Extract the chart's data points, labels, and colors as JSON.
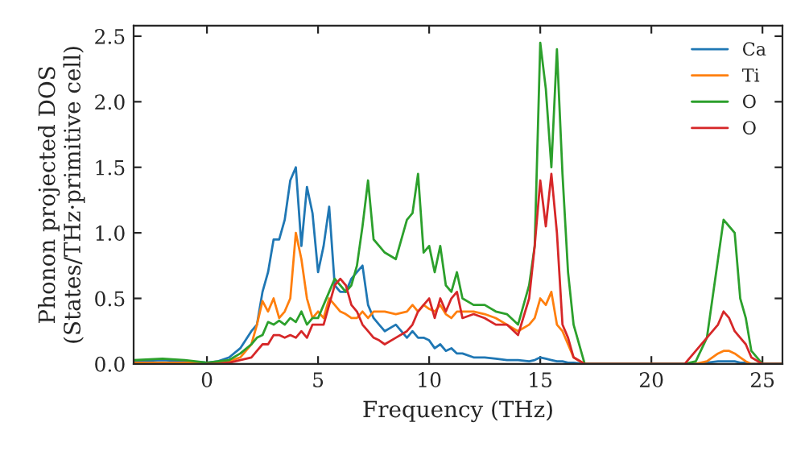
{
  "chart_data": {
    "type": "line",
    "xlabel": "Frequency (THz)",
    "ylabel": "Phonon projected DOS\n(States/THz·primitive cell)",
    "x": [
      -3.3,
      -2,
      -1,
      0,
      0.5,
      1,
      1.5,
      2,
      2.25,
      2.5,
      2.75,
      3,
      3.25,
      3.5,
      3.75,
      4,
      4.25,
      4.5,
      4.75,
      5,
      5.25,
      5.5,
      5.75,
      6,
      6.25,
      6.5,
      6.75,
      7,
      7.25,
      7.5,
      7.75,
      8,
      8.5,
      9,
      9.25,
      9.5,
      9.75,
      10,
      10.25,
      10.5,
      10.75,
      11,
      11.25,
      11.5,
      12,
      12.5,
      13,
      13.5,
      14,
      14.5,
      14.75,
      15,
      15.25,
      15.5,
      15.75,
      16,
      16.25,
      16.5,
      17,
      18,
      20,
      21.5,
      22,
      22.5,
      23,
      23.25,
      23.5,
      23.75,
      24,
      24.25,
      24.5,
      25,
      25.9
    ],
    "series": [
      {
        "name": "Ca",
        "color": "#1f77b4",
        "values": [
          0.02,
          0.03,
          0.02,
          0.01,
          0.02,
          0.05,
          0.12,
          0.25,
          0.3,
          0.55,
          0.7,
          0.95,
          0.95,
          1.1,
          1.4,
          1.5,
          0.9,
          1.35,
          1.15,
          0.7,
          0.9,
          1.2,
          0.6,
          0.55,
          0.55,
          0.65,
          0.7,
          0.75,
          0.45,
          0.35,
          0.3,
          0.25,
          0.3,
          0.2,
          0.25,
          0.2,
          0.2,
          0.18,
          0.12,
          0.15,
          0.1,
          0.12,
          0.08,
          0.08,
          0.05,
          0.05,
          0.04,
          0.03,
          0.03,
          0.02,
          0.03,
          0.05,
          0.04,
          0.03,
          0.02,
          0.02,
          0.01,
          0.01,
          0,
          0,
          0,
          0,
          0,
          0.01,
          0.02,
          0.02,
          0.02,
          0.02,
          0.01,
          0.01,
          0,
          0,
          0
        ]
      },
      {
        "name": "Ti",
        "color": "#ff7f0e",
        "values": [
          0.01,
          0.01,
          0.01,
          0.01,
          0.01,
          0.02,
          0.05,
          0.15,
          0.3,
          0.48,
          0.4,
          0.5,
          0.35,
          0.4,
          0.5,
          1.0,
          0.8,
          0.5,
          0.35,
          0.4,
          0.35,
          0.5,
          0.45,
          0.4,
          0.38,
          0.35,
          0.35,
          0.4,
          0.35,
          0.4,
          0.4,
          0.4,
          0.38,
          0.4,
          0.45,
          0.4,
          0.45,
          0.42,
          0.4,
          0.45,
          0.38,
          0.35,
          0.4,
          0.4,
          0.4,
          0.38,
          0.35,
          0.3,
          0.25,
          0.3,
          0.35,
          0.5,
          0.45,
          0.55,
          0.3,
          0.25,
          0.15,
          0.05,
          0,
          0,
          0,
          0,
          0,
          0.02,
          0.08,
          0.1,
          0.1,
          0.08,
          0.05,
          0.02,
          0,
          0,
          0
        ]
      },
      {
        "name": "O",
        "color": "#2ca02c",
        "values": [
          0.03,
          0.04,
          0.03,
          0.01,
          0.02,
          0.03,
          0.08,
          0.15,
          0.2,
          0.22,
          0.32,
          0.3,
          0.33,
          0.3,
          0.35,
          0.32,
          0.4,
          0.3,
          0.35,
          0.35,
          0.45,
          0.55,
          0.65,
          0.6,
          0.55,
          0.6,
          0.75,
          1.05,
          1.4,
          0.95,
          0.9,
          0.85,
          0.8,
          1.1,
          1.15,
          1.45,
          0.85,
          0.9,
          0.7,
          0.9,
          0.6,
          0.55,
          0.7,
          0.5,
          0.45,
          0.45,
          0.4,
          0.38,
          0.3,
          0.6,
          0.9,
          2.45,
          2.1,
          1.5,
          2.4,
          1.45,
          0.7,
          0.3,
          0,
          0,
          0,
          0,
          0.02,
          0.2,
          0.8,
          1.1,
          1.05,
          1.0,
          0.5,
          0.35,
          0.1,
          0,
          0
        ]
      },
      {
        "name": "O",
        "color": "#d62728",
        "values": [
          null,
          null,
          null,
          0,
          0,
          0.01,
          0.03,
          0.05,
          0.1,
          0.15,
          0.15,
          0.22,
          0.22,
          0.2,
          0.22,
          0.2,
          0.25,
          0.2,
          0.3,
          0.3,
          0.3,
          0.45,
          0.6,
          0.65,
          0.6,
          0.45,
          0.4,
          0.3,
          0.25,
          0.2,
          0.18,
          0.15,
          0.2,
          0.25,
          0.3,
          0.4,
          0.45,
          0.5,
          0.35,
          0.5,
          0.4,
          0.5,
          0.55,
          0.35,
          0.38,
          0.35,
          0.3,
          0.3,
          0.22,
          0.5,
          0.9,
          1.4,
          1.05,
          1.45,
          1.0,
          0.3,
          0.2,
          0.05,
          0,
          0,
          0,
          0,
          0.1,
          0.2,
          0.3,
          0.4,
          0.35,
          0.25,
          0.2,
          0.15,
          0.05,
          0,
          0
        ]
      }
    ],
    "xlim": [
      -3.3,
      25.9
    ],
    "ylim": [
      0,
      2.58
    ],
    "xticks": [
      0,
      5,
      10,
      15,
      20,
      25
    ],
    "yticks": [
      {
        "value": 0,
        "label": "0.0"
      },
      0.5,
      {
        "value": 1,
        "label": "1.0"
      },
      1.5,
      {
        "value": 2,
        "label": "2.0"
      },
      2.5
    ],
    "grid": false,
    "legend": "top right"
  }
}
